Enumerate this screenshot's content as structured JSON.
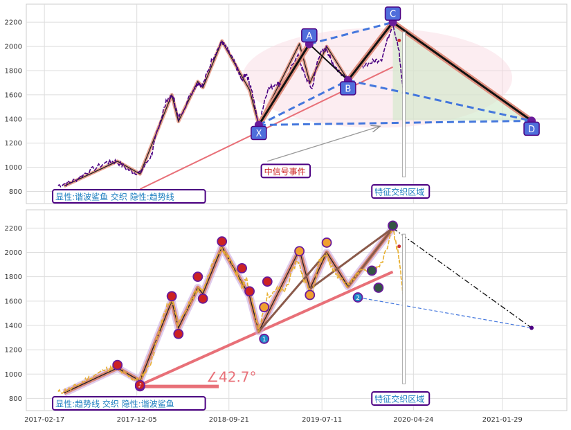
{
  "chart_data": [
    {
      "type": "line",
      "panel": "top",
      "ylim": [
        700,
        2350
      ],
      "yticks": [
        "800",
        "1000",
        "1200",
        "1400",
        "1600",
        "1800",
        "2000",
        "2200"
      ],
      "grid": true,
      "price_path": [
        [
          "2017-04-01",
          850
        ],
        [
          "2017-05-15",
          880
        ],
        [
          "2017-07-01",
          960
        ],
        [
          "2017-09-01",
          1040
        ],
        [
          "2017-10-01",
          1050
        ],
        [
          "2017-11-15",
          970
        ],
        [
          "2017-12-15",
          950
        ],
        [
          "2018-01-20",
          1100
        ],
        [
          "2018-02-10",
          1320
        ],
        [
          "2018-03-10",
          1560
        ],
        [
          "2018-03-30",
          1590
        ],
        [
          "2018-04-15",
          1400
        ],
        [
          "2018-06-01",
          1640
        ],
        [
          "2018-06-15",
          1700
        ],
        [
          "2018-07-01",
          1680
        ],
        [
          "2018-08-01",
          1900
        ],
        [
          "2018-08-30",
          2040
        ],
        [
          "2018-09-20",
          1960
        ],
        [
          "2018-10-15",
          1830
        ],
        [
          "2018-11-01",
          1720
        ],
        [
          "2018-11-15",
          1780
        ],
        [
          "2018-12-01",
          1650
        ],
        [
          "2018-12-24",
          1350
        ],
        [
          "2019-01-20",
          1640
        ],
        [
          "2019-02-20",
          1700
        ],
        [
          "2019-03-15",
          1680
        ],
        [
          "2019-04-25",
          1940
        ],
        [
          "2019-05-15",
          1780
        ],
        [
          "2019-06-10",
          1650
        ],
        [
          "2019-07-01",
          1920
        ],
        [
          "2019-07-25",
          1990
        ],
        [
          "2019-08-10",
          1880
        ],
        [
          "2019-09-01",
          1800
        ],
        [
          "2019-10-01",
          1730
        ],
        [
          "2019-11-01",
          1830
        ],
        [
          "2019-12-15",
          1870
        ],
        [
          "2020-01-15",
          1900
        ],
        [
          "2020-02-20",
          2200
        ],
        [
          "2020-03-10",
          1950
        ],
        [
          "2020-03-23",
          1640
        ]
      ],
      "zigzag": [
        [
          "2017-04-20",
          845
        ],
        [
          "2017-10-05",
          1050
        ],
        [
          "2017-12-15",
          945
        ],
        [
          "2018-03-25",
          1600
        ],
        [
          "2018-04-15",
          1380
        ],
        [
          "2018-06-15",
          1710
        ],
        [
          "2018-07-01",
          1660
        ],
        [
          "2018-08-30",
          2045
        ],
        [
          "2018-11-25",
          1640
        ],
        [
          "2018-12-24",
          1350
        ],
        [
          "2019-05-01",
          2020
        ],
        [
          "2019-06-03",
          1700
        ],
        [
          "2019-07-26",
          2000
        ],
        [
          "2019-10-01",
          1720
        ],
        [
          "2020-02-19",
          2200
        ]
      ],
      "trendline": [
        [
          "2017-12-15",
          820
        ],
        [
          "2020-02-19",
          1830
        ]
      ],
      "pattern_points": [
        {
          "label": "X",
          "date": "2018-12-24",
          "value": 1350
        },
        {
          "label": "A",
          "date": "2019-06-01",
          "value": 2020
        },
        {
          "label": "B",
          "date": "2019-10-01",
          "value": 1720
        },
        {
          "label": "C",
          "date": "2020-02-19",
          "value": 2200
        },
        {
          "label": "D",
          "date": "2021-05-01",
          "value": 1385
        }
      ],
      "annotations": [
        {
          "name": "signal-event",
          "text": "中信号事件",
          "date": "2019-01-01",
          "value": 950
        },
        {
          "name": "feature-zone",
          "text": "特征交织区域",
          "date": "2019-12-15",
          "value": 780
        },
        {
          "name": "pattern-info",
          "text": "显性:谐波鲨鱼 交织 隐性:趋势线",
          "date": "2017-03-15",
          "value": 740
        }
      ]
    },
    {
      "type": "line",
      "panel": "bottom",
      "ylim": [
        700,
        2350
      ],
      "yticks": [
        "800",
        "1000",
        "1200",
        "1400",
        "1600",
        "1800",
        "2000",
        "2200"
      ],
      "xticks": [
        "2017-02-17",
        "2017-12-05",
        "2018-09-21",
        "2019-07-11",
        "2020-04-24",
        "2021-01-29"
      ],
      "grid": true,
      "trend_points": [
        {
          "date": "2017-12-15",
          "value": 910,
          "label": "♪"
        },
        {
          "date": "2019-01-10",
          "value": 1290,
          "label": "1"
        },
        {
          "date": "2019-11-01",
          "value": 1630,
          "label": "2"
        }
      ],
      "trendline": [
        [
          "2017-12-15",
          910
        ],
        [
          "2020-02-19",
          1840
        ]
      ],
      "projection": [
        [
          "2020-02-19",
          2200
        ],
        [
          "2021-05-01",
          1380
        ]
      ],
      "angle_text": "∠42.7°",
      "annotations": [
        {
          "name": "feature-zone",
          "text": "特征交织区域",
          "date": "2019-12-15",
          "value": 780
        },
        {
          "name": "pattern-info",
          "text": "显性:趋势线 交织 隐性:谐波鲨鱼",
          "date": "2017-03-15",
          "value": 740
        }
      ]
    }
  ],
  "colors": {
    "price_top": "#4b0082",
    "price_bottom": "#e8b030",
    "zigzag": "#e8a090",
    "trend": "#e87078",
    "pattern_edge": "#4477dd",
    "label_fill": "#4f6edb",
    "label_stroke": "#4b0082",
    "annotation_text_blue": "#1e7fc0",
    "annotation_text_red": "#cc2222"
  }
}
